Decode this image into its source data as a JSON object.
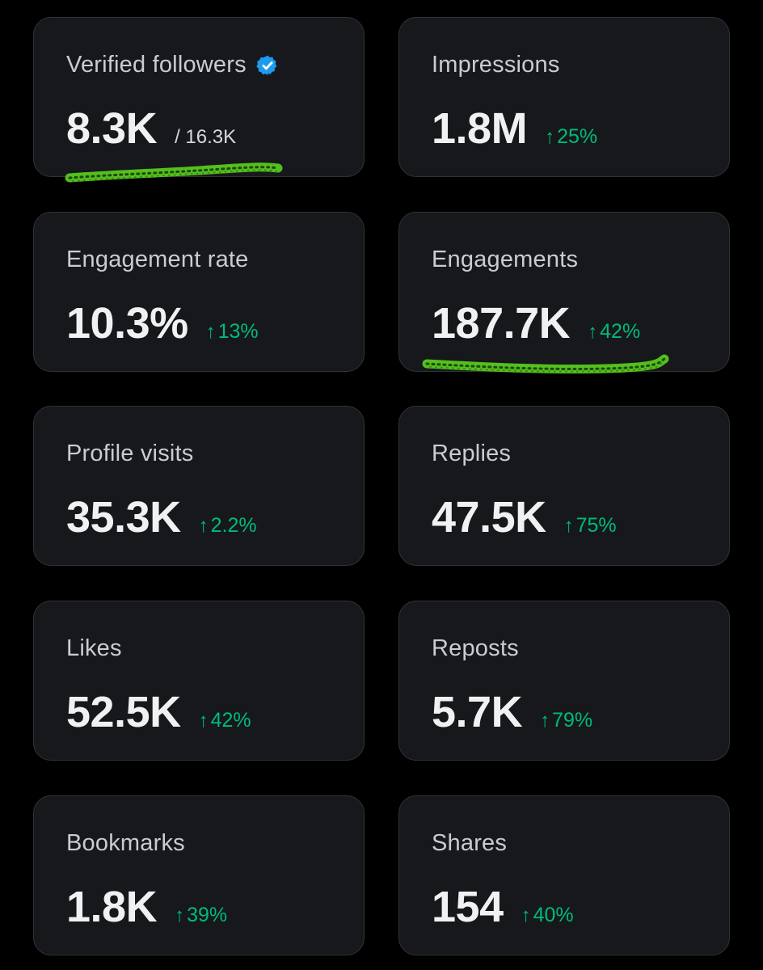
{
  "accent_colors": {
    "positive": "#00ba7c",
    "verified": "#1d9bf0",
    "scribble": "#5bd11f"
  },
  "cards": [
    {
      "title": "Verified followers",
      "value": "8.3K",
      "total": "/ 16.3K",
      "icon": "verified-badge-icon"
    },
    {
      "title": "Impressions",
      "value": "1.8M",
      "change": "25%"
    },
    {
      "title": "Engagement rate",
      "value": "10.3%",
      "change": "13%"
    },
    {
      "title": "Engagements",
      "value": "187.7K",
      "change": "42%"
    },
    {
      "title": "Profile visits",
      "value": "35.3K",
      "change": "2.2%"
    },
    {
      "title": "Replies",
      "value": "47.5K",
      "change": "75%"
    },
    {
      "title": "Likes",
      "value": "52.5K",
      "change": "42%"
    },
    {
      "title": "Reposts",
      "value": "5.7K",
      "change": "79%"
    },
    {
      "title": "Bookmarks",
      "value": "1.8K",
      "change": "39%"
    },
    {
      "title": "Shares",
      "value": "154",
      "change": "40%"
    }
  ],
  "arrow_glyph": "↑"
}
